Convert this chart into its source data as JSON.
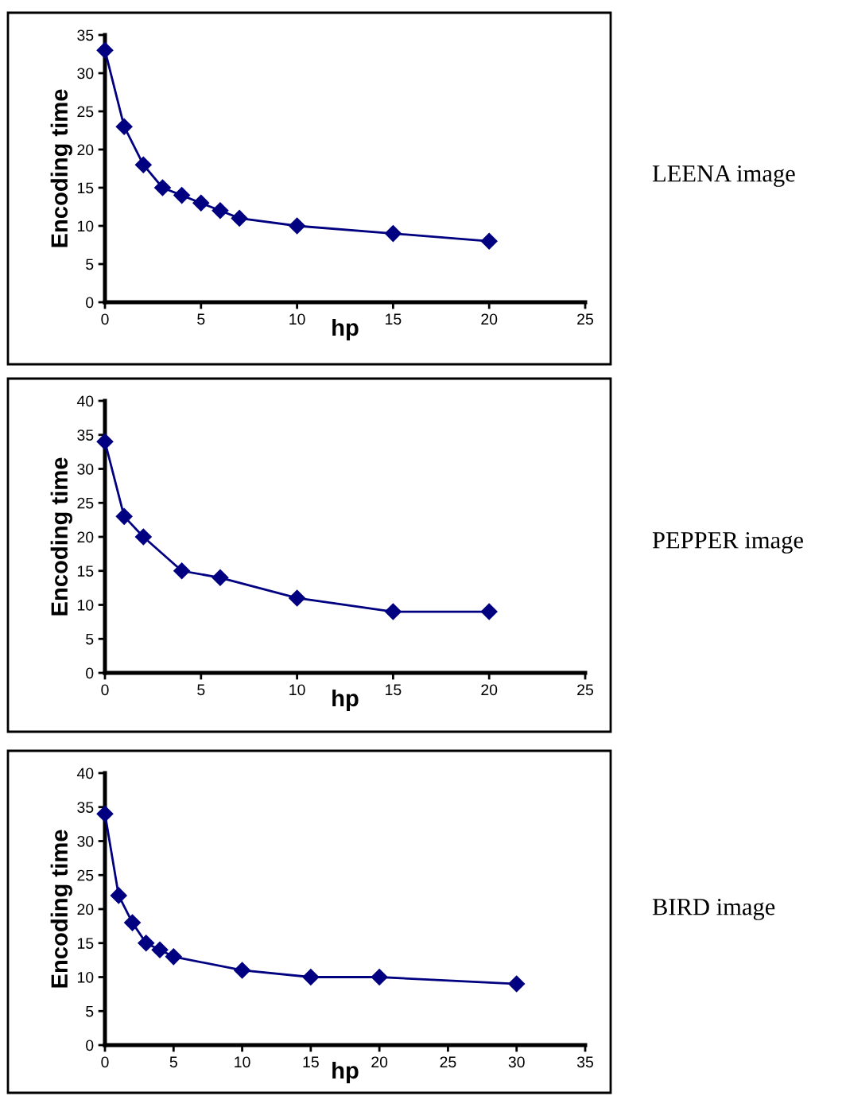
{
  "chart_data": [
    {
      "type": "line",
      "xlabel": "hp",
      "ylabel": "Encoding time",
      "annotations": [
        "LEENA image"
      ],
      "x": [
        0,
        1,
        2,
        3,
        4,
        5,
        6,
        7,
        10,
        15,
        20
      ],
      "series": [
        {
          "color": "#000080",
          "values": [
            33,
            23,
            18,
            15,
            14,
            13,
            12,
            11,
            10,
            9,
            8
          ]
        }
      ],
      "xlim": [
        0,
        25
      ],
      "xticks": [
        0,
        5,
        10,
        15,
        20,
        25
      ],
      "ylim": [
        0,
        35
      ],
      "yticks": [
        0,
        5,
        10,
        15,
        20,
        25,
        30,
        35
      ],
      "marker": "diamond",
      "line_style": "solid",
      "grid": false,
      "legend": false
    },
    {
      "type": "line",
      "xlabel": "hp",
      "ylabel": "Encoding time",
      "annotations": [
        "PEPPER image"
      ],
      "x": [
        0,
        1,
        2,
        4,
        6,
        10,
        15,
        20
      ],
      "series": [
        {
          "color": "#000080",
          "values": [
            34,
            23,
            20,
            15,
            14,
            11,
            9,
            9
          ]
        }
      ],
      "xlim": [
        0,
        25
      ],
      "xticks": [
        0,
        5,
        10,
        15,
        20,
        25
      ],
      "ylim": [
        0,
        40
      ],
      "yticks": [
        0,
        5,
        10,
        15,
        20,
        25,
        30,
        35,
        40
      ],
      "marker": "diamond",
      "line_style": "solid",
      "grid": false,
      "legend": false
    },
    {
      "type": "line",
      "xlabel": "hp",
      "ylabel": "Encoding time",
      "annotations": [
        "BIRD image"
      ],
      "x": [
        0,
        1,
        2,
        3,
        4,
        5,
        10,
        15,
        20,
        30
      ],
      "series": [
        {
          "color": "#000080",
          "values": [
            34,
            22,
            18,
            15,
            14,
            13,
            11,
            10,
            10,
            9
          ]
        }
      ],
      "xlim": [
        0,
        35
      ],
      "xticks": [
        0,
        5,
        10,
        15,
        20,
        25,
        30,
        35
      ],
      "ylim": [
        0,
        40
      ],
      "yticks": [
        0,
        5,
        10,
        15,
        20,
        25,
        30,
        35,
        40
      ],
      "marker": "diamond",
      "line_style": "solid",
      "grid": false,
      "legend": false
    }
  ]
}
